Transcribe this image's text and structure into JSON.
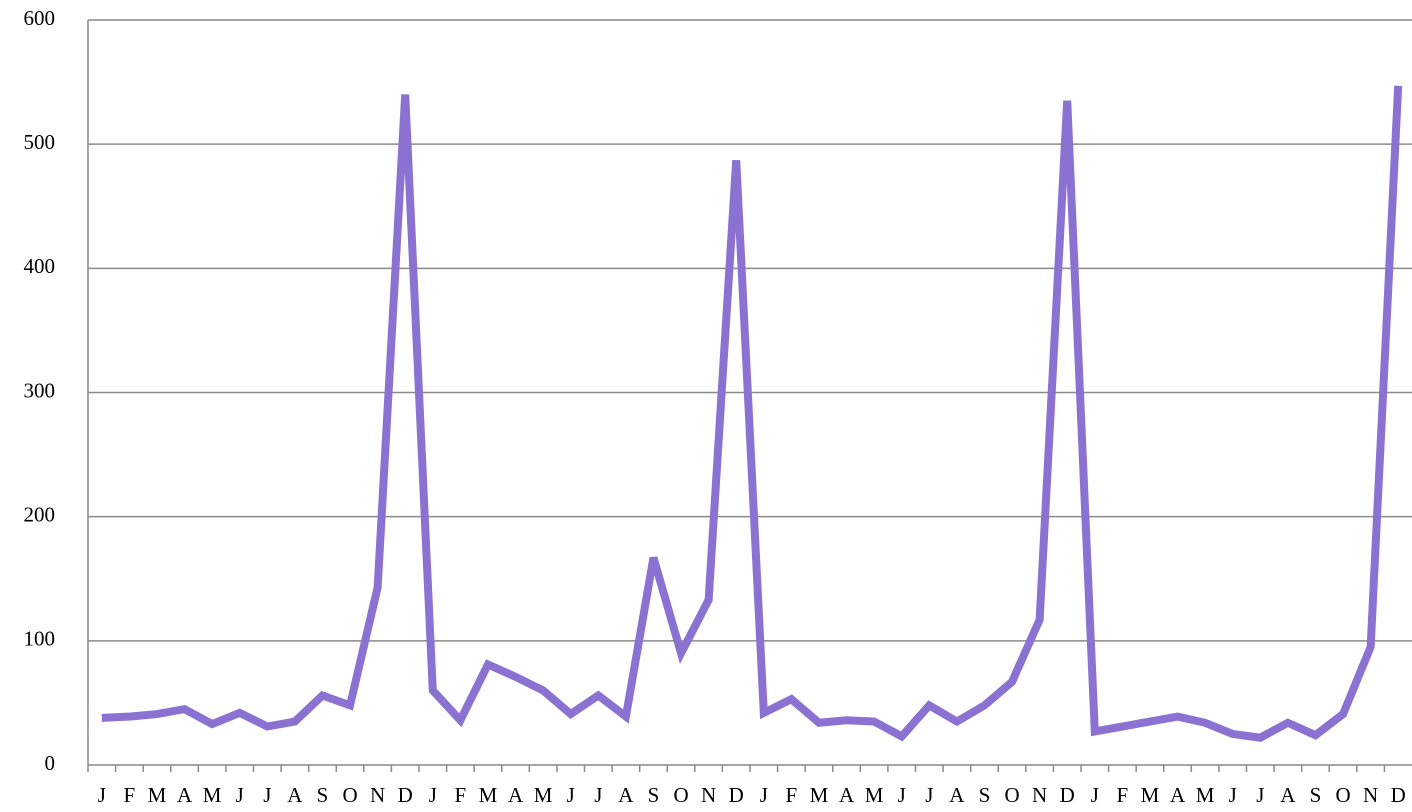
{
  "chart_data": {
    "type": "line",
    "categories": [
      "J",
      "F",
      "M",
      "A",
      "M",
      "J",
      "J",
      "A",
      "S",
      "O",
      "N",
      "D",
      "J",
      "F",
      "M",
      "A",
      "M",
      "J",
      "J",
      "A",
      "S",
      "O",
      "N",
      "D",
      "J",
      "F",
      "M",
      "A",
      "M",
      "J",
      "J",
      "A",
      "S",
      "O",
      "N",
      "D",
      "J",
      "F",
      "M",
      "A",
      "M",
      "J",
      "J",
      "A",
      "S",
      "O",
      "N",
      "D"
    ],
    "series": [
      {
        "color": "#8b72d2",
        "values": [
          38,
          39,
          41,
          45,
          33,
          42,
          31,
          35,
          56,
          48,
          143,
          540,
          60,
          36,
          81,
          71,
          60,
          41,
          56,
          39,
          167,
          90,
          133,
          487,
          42,
          53,
          34,
          36,
          35,
          23,
          48,
          35,
          48,
          67,
          117,
          535,
          27,
          31,
          35,
          39,
          34,
          25,
          22,
          34,
          24,
          41,
          95,
          547
        ]
      }
    ],
    "ylim": [
      0,
      600
    ],
    "yticks": [
      0,
      100,
      200,
      300,
      400,
      500,
      600
    ],
    "grid": true
  }
}
